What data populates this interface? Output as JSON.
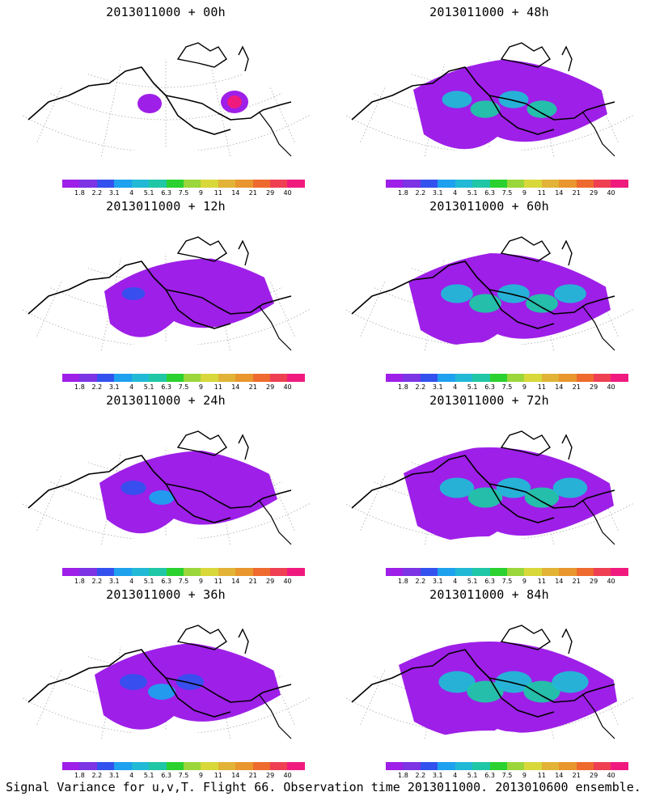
{
  "caption": "Signal Variance for u,v,T. Flight 66. Observation time 2013011000. 2013010600 ensemble.",
  "colorbar": {
    "colors": [
      "#9e1fe8",
      "#7c34e4",
      "#3351ee",
      "#1ea1ee",
      "#21b9d6",
      "#1fc7a6",
      "#2bd12f",
      "#9bd63a",
      "#d8d83a",
      "#e2b336",
      "#e8962d",
      "#ee6a2e",
      "#ef3f53",
      "#f01a7f"
    ],
    "labels": [
      "1.8",
      "2.2",
      "3.1",
      "4",
      "5.1",
      "6.3",
      "7.5",
      "9",
      "11",
      "14",
      "21",
      "29",
      "40"
    ]
  },
  "panels": [
    {
      "title": "2013011000 + 00h",
      "level": 0
    },
    {
      "title": "2013011000 + 48h",
      "level": 4
    },
    {
      "title": "2013011000 + 12h",
      "level": 1
    },
    {
      "title": "2013011000 + 60h",
      "level": 5
    },
    {
      "title": "2013011000 + 24h",
      "level": 2
    },
    {
      "title": "2013011000 + 72h",
      "level": 6
    },
    {
      "title": "2013011000 + 36h",
      "level": 3
    },
    {
      "title": "2013011000 + 84h",
      "level": 7
    }
  ]
}
